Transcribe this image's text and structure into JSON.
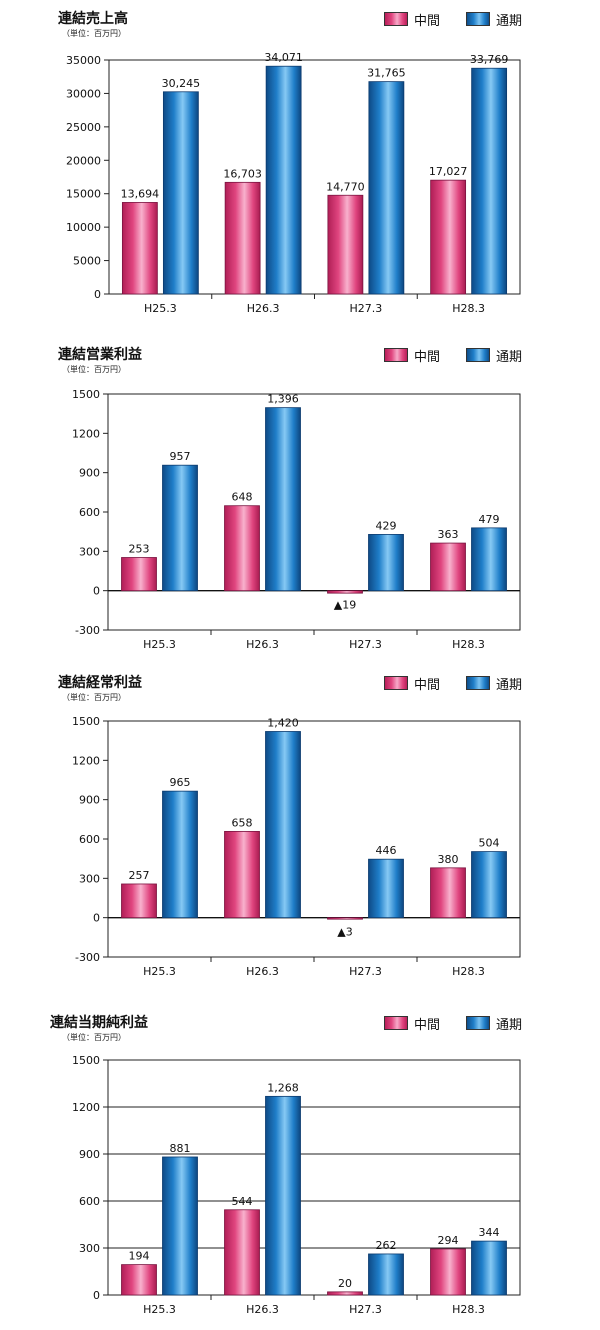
{
  "colors": {
    "interim": "#e0457f",
    "full": "#1f7ec9"
  },
  "legend": {
    "interim": "中間",
    "full": "通期"
  },
  "unit": "（単位：百万円）",
  "chart_data": [
    {
      "type": "bar",
      "title": "連結売上高",
      "categories": [
        "H25.3",
        "H26.3",
        "H27.3",
        "H28.3"
      ],
      "ylim": [
        0,
        35000
      ],
      "yticks": [
        0,
        5000,
        10000,
        15000,
        20000,
        25000,
        30000,
        35000
      ],
      "ytick_labels": [
        "0",
        "5000",
        "10000",
        "15000",
        "20000",
        "25000",
        "30000",
        "35000"
      ],
      "grid": false,
      "series": [
        {
          "name": "中間",
          "values": [
            13694,
            16703,
            14770,
            17027
          ],
          "labels": [
            "13,694",
            "16,703",
            "14,770",
            "17,027"
          ]
        },
        {
          "name": "通期",
          "values": [
            30245,
            34071,
            31765,
            33769
          ],
          "labels": [
            "30,245",
            "34,071",
            "31,765",
            "33,769"
          ]
        }
      ]
    },
    {
      "type": "bar",
      "title": "連結営業利益",
      "categories": [
        "H25.3",
        "H26.3",
        "H27.3",
        "H28.3"
      ],
      "ylim": [
        -300,
        1500
      ],
      "yticks": [
        -300,
        0,
        300,
        600,
        900,
        1200,
        1500
      ],
      "ytick_labels": [
        "-300",
        "0",
        "300",
        "600",
        "900",
        "1200",
        "1500"
      ],
      "grid": false,
      "series": [
        {
          "name": "中間",
          "values": [
            253,
            648,
            -19,
            363
          ],
          "labels": [
            "253",
            "648",
            "▲19",
            "363"
          ]
        },
        {
          "name": "通期",
          "values": [
            957,
            1396,
            429,
            479
          ],
          "labels": [
            "957",
            "1,396",
            "429",
            "479"
          ]
        }
      ]
    },
    {
      "type": "bar",
      "title": "連結経常利益",
      "categories": [
        "H25.3",
        "H26.3",
        "H27.3",
        "H28.3"
      ],
      "ylim": [
        -300,
        1500
      ],
      "yticks": [
        -300,
        0,
        300,
        600,
        900,
        1200,
        1500
      ],
      "ytick_labels": [
        "-300",
        "0",
        "300",
        "600",
        "900",
        "1200",
        "1500"
      ],
      "grid": false,
      "series": [
        {
          "name": "中間",
          "values": [
            257,
            658,
            -3,
            380
          ],
          "labels": [
            "257",
            "658",
            "▲3",
            "380"
          ]
        },
        {
          "name": "通期",
          "values": [
            965,
            1420,
            446,
            504
          ],
          "labels": [
            "965",
            "1,420",
            "446",
            "504"
          ]
        }
      ]
    },
    {
      "type": "bar",
      "title": "連結当期純利益",
      "categories": [
        "H25.3",
        "H26.3",
        "H27.3",
        "H28.3"
      ],
      "ylim": [
        0,
        1500
      ],
      "yticks": [
        0,
        300,
        600,
        900,
        1200,
        1500
      ],
      "ytick_labels": [
        "0",
        "300",
        "600",
        "900",
        "1200",
        "1500"
      ],
      "grid": true,
      "series": [
        {
          "name": "中間",
          "values": [
            194,
            544,
            20,
            294
          ],
          "labels": [
            "194",
            "544",
            "20",
            "294"
          ]
        },
        {
          "name": "通期",
          "values": [
            881,
            1268,
            262,
            344
          ],
          "labels": [
            "881",
            "1,268",
            "262",
            "344"
          ]
        }
      ]
    }
  ]
}
